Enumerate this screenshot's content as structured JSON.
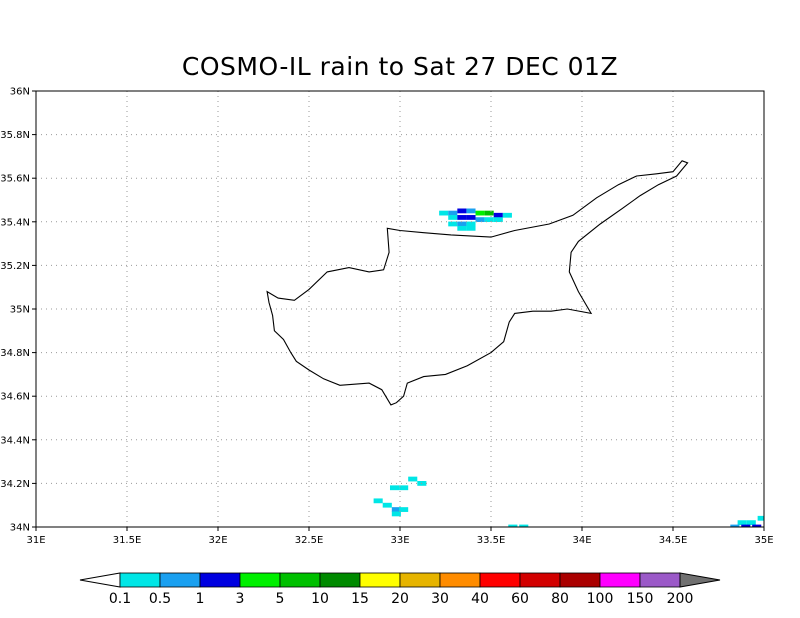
{
  "title": "COSMO-IL rain to Sat 27 DEC 01Z",
  "map": {
    "lon_range": [
      31,
      35
    ],
    "lat_range": [
      34,
      36
    ],
    "grid": "dotted",
    "x_ticks": [
      {
        "value": 31,
        "label": "31E"
      },
      {
        "value": 31.5,
        "label": "31.5E"
      },
      {
        "value": 32,
        "label": "32E"
      },
      {
        "value": 32.5,
        "label": "32.5E"
      },
      {
        "value": 33,
        "label": "33E"
      },
      {
        "value": 33.5,
        "label": "33.5E"
      },
      {
        "value": 34,
        "label": "34E"
      },
      {
        "value": 34.5,
        "label": "34.5E"
      },
      {
        "value": 35,
        "label": "35E"
      }
    ],
    "y_ticks": [
      {
        "value": 34,
        "label": "34N"
      },
      {
        "value": 34.2,
        "label": "34.2N"
      },
      {
        "value": 34.4,
        "label": "34.4N"
      },
      {
        "value": 34.6,
        "label": "34.6N"
      },
      {
        "value": 34.8,
        "label": "34.8N"
      },
      {
        "value": 35,
        "label": "35N"
      },
      {
        "value": 35.2,
        "label": "35.2N"
      },
      {
        "value": 35.4,
        "label": "35.4N"
      },
      {
        "value": 35.6,
        "label": "35.6N"
      },
      {
        "value": 35.8,
        "label": "35.8N"
      },
      {
        "value": 36,
        "label": "36N"
      }
    ],
    "coastline_lonlat": [
      [
        32.27,
        35.08
      ],
      [
        32.33,
        35.05
      ],
      [
        32.42,
        35.04
      ],
      [
        32.5,
        35.09
      ],
      [
        32.6,
        35.17
      ],
      [
        32.72,
        35.19
      ],
      [
        32.83,
        35.17
      ],
      [
        32.91,
        35.18
      ],
      [
        32.94,
        35.26
      ],
      [
        32.93,
        35.37
      ],
      [
        33.0,
        35.36
      ],
      [
        33.13,
        35.35
      ],
      [
        33.28,
        35.34
      ],
      [
        33.5,
        35.33
      ],
      [
        33.63,
        35.36
      ],
      [
        33.82,
        35.39
      ],
      [
        33.95,
        35.43
      ],
      [
        34.08,
        35.51
      ],
      [
        34.2,
        35.57
      ],
      [
        34.3,
        35.61
      ],
      [
        34.41,
        35.62
      ],
      [
        34.5,
        35.63
      ],
      [
        34.55,
        35.68
      ],
      [
        34.58,
        35.67
      ],
      [
        34.52,
        35.61
      ],
      [
        34.42,
        35.57
      ],
      [
        34.32,
        35.52
      ],
      [
        34.22,
        35.46
      ],
      [
        34.1,
        35.39
      ],
      [
        33.98,
        35.31
      ],
      [
        33.94,
        35.26
      ],
      [
        33.93,
        35.17
      ],
      [
        33.98,
        35.08
      ],
      [
        34.05,
        34.98
      ],
      [
        33.92,
        35.0
      ],
      [
        33.83,
        34.99
      ],
      [
        33.73,
        34.99
      ],
      [
        33.63,
        34.98
      ],
      [
        33.6,
        34.94
      ],
      [
        33.57,
        34.85
      ],
      [
        33.5,
        34.8
      ],
      [
        33.37,
        34.74
      ],
      [
        33.25,
        34.7
      ],
      [
        33.13,
        34.69
      ],
      [
        33.04,
        34.66
      ],
      [
        33.02,
        34.6
      ],
      [
        32.98,
        34.57
      ],
      [
        32.95,
        34.56
      ],
      [
        32.9,
        34.63
      ],
      [
        32.83,
        34.66
      ],
      [
        32.67,
        34.65
      ],
      [
        32.58,
        34.68
      ],
      [
        32.5,
        34.72
      ],
      [
        32.43,
        34.76
      ],
      [
        32.4,
        34.8
      ],
      [
        32.36,
        34.86
      ],
      [
        32.31,
        34.9
      ],
      [
        32.3,
        34.97
      ],
      [
        32.28,
        35.03
      ],
      [
        32.27,
        35.08
      ]
    ],
    "rain_cells": [
      {
        "lon": 33.24,
        "lat": 35.44,
        "class": 1
      },
      {
        "lon": 33.29,
        "lat": 35.44,
        "class": 2
      },
      {
        "lon": 33.34,
        "lat": 35.45,
        "class": 3
      },
      {
        "lon": 33.39,
        "lat": 35.45,
        "class": 2
      },
      {
        "lon": 33.44,
        "lat": 35.44,
        "class": 4
      },
      {
        "lon": 33.49,
        "lat": 35.44,
        "class": 5
      },
      {
        "lon": 33.54,
        "lat": 35.43,
        "class": 3
      },
      {
        "lon": 33.59,
        "lat": 35.43,
        "class": 1
      },
      {
        "lon": 33.29,
        "lat": 35.42,
        "class": 1
      },
      {
        "lon": 33.34,
        "lat": 35.42,
        "class": 3
      },
      {
        "lon": 33.39,
        "lat": 35.42,
        "class": 3
      },
      {
        "lon": 33.44,
        "lat": 35.41,
        "class": 2
      },
      {
        "lon": 33.49,
        "lat": 35.41,
        "class": 1
      },
      {
        "lon": 33.54,
        "lat": 35.41,
        "class": 1
      },
      {
        "lon": 33.29,
        "lat": 35.39,
        "class": 1
      },
      {
        "lon": 33.34,
        "lat": 35.39,
        "class": 2
      },
      {
        "lon": 33.39,
        "lat": 35.39,
        "class": 1
      },
      {
        "lon": 33.34,
        "lat": 35.37,
        "class": 1
      },
      {
        "lon": 33.39,
        "lat": 35.37,
        "class": 1
      },
      {
        "lon": 33.07,
        "lat": 34.22,
        "class": 1
      },
      {
        "lon": 33.12,
        "lat": 34.2,
        "class": 1
      },
      {
        "lon": 33.02,
        "lat": 34.18,
        "class": 1
      },
      {
        "lon": 32.97,
        "lat": 34.18,
        "class": 1
      },
      {
        "lon": 32.88,
        "lat": 34.12,
        "class": 1
      },
      {
        "lon": 32.93,
        "lat": 34.1,
        "class": 1
      },
      {
        "lon": 32.98,
        "lat": 34.08,
        "class": 2
      },
      {
        "lon": 33.02,
        "lat": 34.08,
        "class": 1
      },
      {
        "lon": 32.98,
        "lat": 34.06,
        "class": 1
      },
      {
        "lon": 33.62,
        "lat": 34.0,
        "class": 1
      },
      {
        "lon": 33.68,
        "lat": 34.0,
        "class": 1
      },
      {
        "lon": 34.88,
        "lat": 34.02,
        "class": 1
      },
      {
        "lon": 34.93,
        "lat": 34.02,
        "class": 1
      },
      {
        "lon": 34.84,
        "lat": 34.0,
        "class": 2
      },
      {
        "lon": 34.9,
        "lat": 34.0,
        "class": 3
      },
      {
        "lon": 34.96,
        "lat": 34.0,
        "class": 3
      },
      {
        "lon": 34.99,
        "lat": 34.04,
        "class": 1
      }
    ]
  },
  "legend": {
    "colors": [
      "#00e6e6",
      "#1aa0f0",
      "#0000e0",
      "#00f000",
      "#00c000",
      "#008a00",
      "#ffff00",
      "#e6b400",
      "#ff8c00",
      "#ff0000",
      "#d20000",
      "#aa0000",
      "#ff00ff",
      "#9b59c8"
    ],
    "low_color": "#ffffff",
    "high_color": "#707070",
    "labels": [
      "0.1",
      "0.5",
      "1",
      "3",
      "5",
      "10",
      "15",
      "20",
      "30",
      "40",
      "60",
      "80",
      "100",
      "150",
      "200"
    ]
  }
}
